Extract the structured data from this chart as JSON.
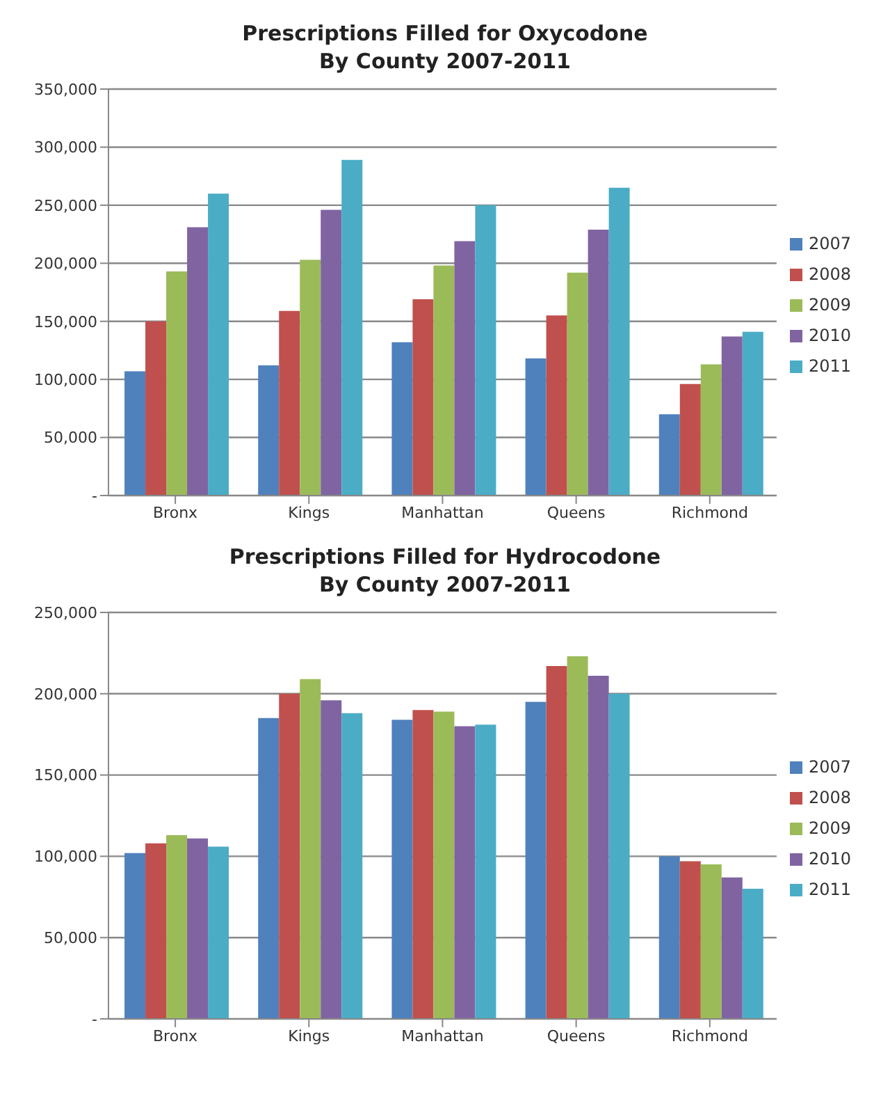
{
  "chart_data": [
    {
      "type": "bar",
      "title": "Prescriptions Filled for Oxycodone\nBy County 2007-2011",
      "categories": [
        "Bronx",
        "Kings",
        "Manhattan",
        "Queens",
        "Richmond"
      ],
      "series": [
        {
          "name": "2007",
          "color": "#4f81bd",
          "values": [
            107000,
            112000,
            132000,
            118000,
            70000
          ]
        },
        {
          "name": "2008",
          "color": "#c0504d",
          "values": [
            150000,
            159000,
            169000,
            155000,
            96000
          ]
        },
        {
          "name": "2009",
          "color": "#9bbb59",
          "values": [
            193000,
            203000,
            198000,
            192000,
            113000
          ]
        },
        {
          "name": "2010",
          "color": "#8064a2",
          "values": [
            231000,
            246000,
            219000,
            229000,
            137000
          ]
        },
        {
          "name": "2011",
          "color": "#4bacc6",
          "values": [
            260000,
            289000,
            250000,
            265000,
            141000
          ]
        }
      ],
      "ylim": [
        0,
        350000
      ],
      "yticks": [
        {
          "value": 0,
          "label": "-"
        },
        {
          "value": 50000,
          "label": "50,000"
        },
        {
          "value": 100000,
          "label": "100,000"
        },
        {
          "value": 150000,
          "label": "150,000"
        },
        {
          "value": 200000,
          "label": "200,000"
        },
        {
          "value": 250000,
          "label": "250,000"
        },
        {
          "value": 300000,
          "label": "300,000"
        },
        {
          "value": 350000,
          "label": "350,000"
        }
      ],
      "grid": "y",
      "legend": "right"
    },
    {
      "type": "bar",
      "title": "Prescriptions Filled for Hydrocodone\nBy County 2007-2011",
      "categories": [
        "Bronx",
        "Kings",
        "Manhattan",
        "Queens",
        "Richmond"
      ],
      "series": [
        {
          "name": "2007",
          "color": "#4f81bd",
          "values": [
            102000,
            185000,
            184000,
            195000,
            100000
          ]
        },
        {
          "name": "2008",
          "color": "#c0504d",
          "values": [
            108000,
            200000,
            190000,
            217000,
            97000
          ]
        },
        {
          "name": "2009",
          "color": "#9bbb59",
          "values": [
            113000,
            209000,
            189000,
            223000,
            95000
          ]
        },
        {
          "name": "2010",
          "color": "#8064a2",
          "values": [
            111000,
            196000,
            180000,
            211000,
            87000
          ]
        },
        {
          "name": "2011",
          "color": "#4bacc6",
          "values": [
            106000,
            188000,
            181000,
            200000,
            80000
          ]
        }
      ],
      "ylim": [
        0,
        250000
      ],
      "yticks": [
        {
          "value": 0,
          "label": "-"
        },
        {
          "value": 50000,
          "label": "50,000"
        },
        {
          "value": 100000,
          "label": "100,000"
        },
        {
          "value": 150000,
          "label": "150,000"
        },
        {
          "value": 200000,
          "label": "200,000"
        },
        {
          "value": 250000,
          "label": "250,000"
        }
      ],
      "grid": "y",
      "legend": "right"
    }
  ]
}
